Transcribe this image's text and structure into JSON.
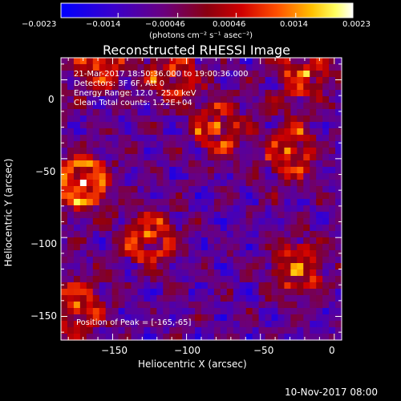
{
  "colorbar": {
    "tick_labels": [
      "−0.0023",
      "−0.0014",
      "−0.00046",
      "0.00046",
      "0.0014",
      "0.0023"
    ],
    "tick_values": [
      -0.0023,
      -0.0014,
      -0.00046,
      0.00046,
      0.0014,
      0.0023
    ],
    "range": [
      -0.0023,
      0.0023
    ],
    "unit_label": "(photons cm⁻² s⁻¹ asec⁻²)",
    "colors": [
      "#0000ff",
      "#5500aa",
      "#800080",
      "#b00000",
      "#ff0000",
      "#ff8000",
      "#ffff00",
      "#ffffff"
    ]
  },
  "chart_data": {
    "type": "heatmap",
    "title": "Reconstructed RHESSI Image",
    "xlabel": "Heliocentric X (arcsec)",
    "ylabel": "Heliocentric Y (arcsec)",
    "xlim": [
      -185,
      5
    ],
    "ylim": [
      -165,
      14
    ],
    "x_ticks": [
      -150,
      -100,
      -50,
      0
    ],
    "x_tick_labels": [
      "−150",
      "−100",
      "−50",
      "0"
    ],
    "y_ticks": [
      0,
      -50,
      -100,
      -150
    ],
    "y_tick_labels": [
      "0",
      "−50",
      "−100",
      "−150"
    ],
    "grid": false,
    "info_lines": [
      "21-Mar-2017 18:50:36.000 to 19:00:36.000",
      "Detectors: 3F 6F, Att 0",
      "Energy Range: 12.0 - 25.0 keV",
      "Clean    Total counts: 1.22E+04"
    ],
    "peak_text": "Position of Peak = [-165,-65]",
    "peak_position": [
      -165,
      -65
    ],
    "bright_sources": [
      {
        "x": -170,
        "y": -65
      },
      {
        "x": -175,
        "y": -145
      },
      {
        "x": -125,
        "y": -100
      },
      {
        "x": -25,
        "y": -120
      },
      {
        "x": -30,
        "y": -45
      },
      {
        "x": -20,
        "y": 5
      },
      {
        "x": -110,
        "y": 5
      },
      {
        "x": -160,
        "y": 10
      },
      {
        "x": -80,
        "y": -30
      }
    ]
  },
  "footer": {
    "timestamp": "10-Nov-2017 08:00"
  }
}
